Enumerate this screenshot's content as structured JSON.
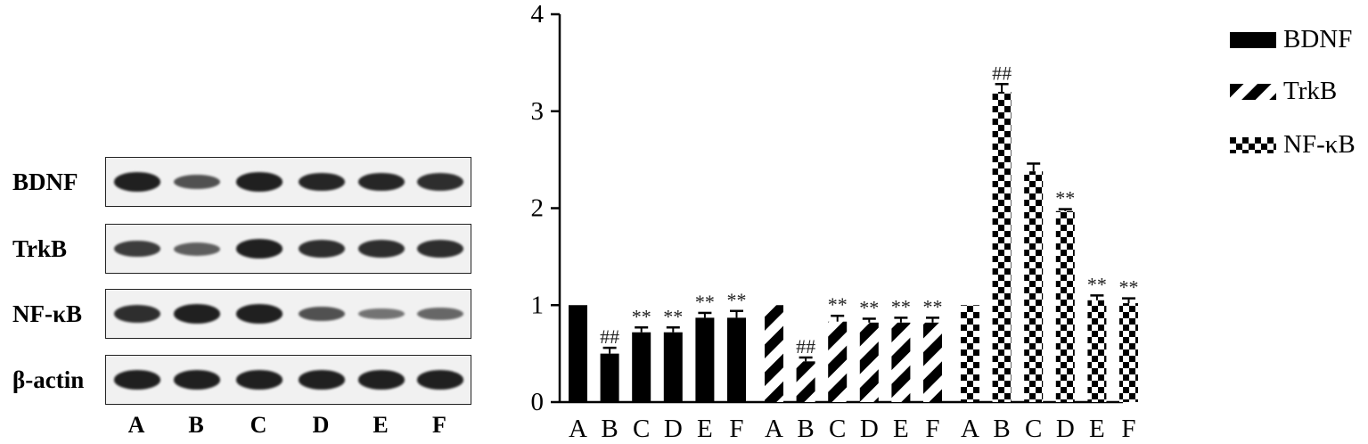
{
  "blot": {
    "rows": [
      {
        "label": "BDNF",
        "intensity": [
          0.95,
          0.6,
          0.95,
          0.9,
          0.9,
          0.85
        ]
      },
      {
        "label": "TrkB",
        "intensity": [
          0.75,
          0.5,
          0.95,
          0.85,
          0.85,
          0.85
        ]
      },
      {
        "label": "NF-κB",
        "intensity": [
          0.85,
          0.95,
          0.95,
          0.6,
          0.35,
          0.45
        ]
      },
      {
        "label": "β-actin",
        "intensity": [
          0.95,
          0.95,
          0.95,
          0.95,
          0.95,
          0.95
        ]
      }
    ],
    "lanes": [
      "A",
      "B",
      "C",
      "D",
      "E",
      "F"
    ]
  },
  "chart_data": {
    "type": "bar",
    "ylim": [
      0,
      4
    ],
    "yticks": [
      "0",
      "1",
      "2",
      "3",
      "4"
    ],
    "categories": [
      "A",
      "B",
      "C",
      "D",
      "E",
      "F"
    ],
    "series": [
      {
        "name": "BDNF",
        "pattern": "solid",
        "values": [
          1.0,
          0.5,
          0.72,
          0.72,
          0.87,
          0.87
        ],
        "errors": [
          0,
          0.06,
          0.05,
          0.05,
          0.05,
          0.07
        ],
        "annotations": [
          "",
          "##",
          "**",
          "**",
          "**",
          "**"
        ]
      },
      {
        "name": "TrkB",
        "pattern": "diagonal",
        "values": [
          1.0,
          0.42,
          0.83,
          0.82,
          0.82,
          0.82
        ],
        "errors": [
          0,
          0.04,
          0.06,
          0.04,
          0.05,
          0.05
        ],
        "annotations": [
          "",
          "##",
          "**",
          "**",
          "**",
          "**"
        ]
      },
      {
        "name": "NF-κB",
        "pattern": "checker",
        "values": [
          1.0,
          3.2,
          2.38,
          1.97,
          1.05,
          1.02
        ],
        "errors": [
          0,
          0.08,
          0.08,
          0.02,
          0.05,
          0.05
        ],
        "annotations": [
          "",
          "##",
          "",
          "**",
          "**",
          "**"
        ]
      }
    ],
    "legend_position": "top-right",
    "colors": {
      "bar": "#000000",
      "background": "#ffffff"
    }
  }
}
